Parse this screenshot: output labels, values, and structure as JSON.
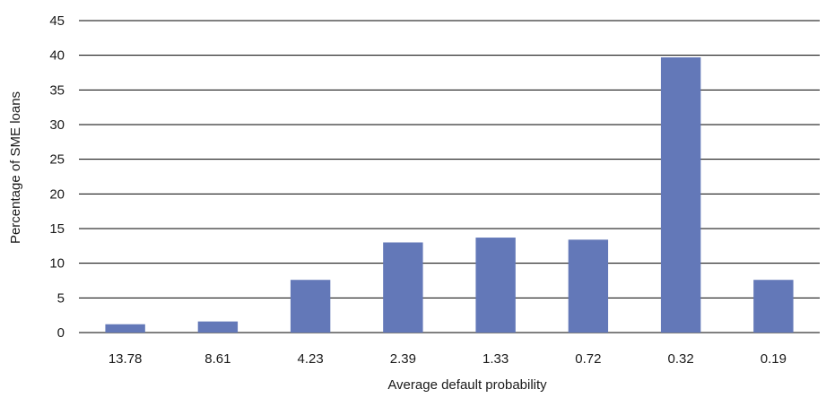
{
  "chart_data": {
    "type": "bar",
    "title": "",
    "xlabel": "Average default probability",
    "ylabel": "Percentage of SME loans",
    "categories": [
      "13.78",
      "8.61",
      "4.23",
      "2.39",
      "1.33",
      "0.72",
      "0.32",
      "0.19"
    ],
    "values": [
      1.2,
      1.6,
      7.6,
      13.0,
      13.7,
      13.4,
      39.7,
      7.6
    ],
    "ylim": [
      0,
      45
    ],
    "yticks": [
      0,
      5,
      10,
      15,
      20,
      25,
      30,
      35,
      40,
      45
    ],
    "grid": true,
    "legend": "none",
    "bar_color": "#6378b8",
    "gridline_color": "#000000"
  }
}
